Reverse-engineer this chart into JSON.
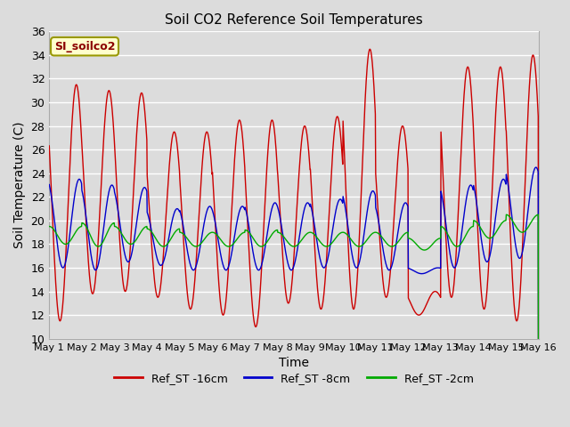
{
  "title": "Soil CO2 Reference Soil Temperatures",
  "xlabel": "Time",
  "ylabel": "Soil Temperature (C)",
  "ylim": [
    10,
    36
  ],
  "yticks": [
    10,
    12,
    14,
    16,
    18,
    20,
    22,
    24,
    26,
    28,
    30,
    32,
    34,
    36
  ],
  "legend_label": "SI_soilco2",
  "series_labels": [
    "Ref_ST -16cm",
    "Ref_ST -8cm",
    "Ref_ST -2cm"
  ],
  "series_colors": [
    "#cc0000",
    "#0000cc",
    "#00aa00"
  ],
  "bg_color": "#dcdcdc",
  "n_days": 15,
  "samples_per_day": 96,
  "day_labels": [
    "May 1",
    "May 2",
    "May 3",
    "May 4",
    "May 5",
    "May 6",
    "May 7",
    "May 8",
    "May 9",
    "May 10",
    "May 11",
    "May 12",
    "May 13",
    "May 14",
    "May 15",
    "May 16"
  ],
  "red_peaks": [
    31.5,
    31.0,
    30.8,
    27.5,
    27.5,
    28.5,
    28.5,
    28.0,
    28.8,
    34.5,
    28.0,
    14.0,
    33.0,
    33.0,
    34.0
  ],
  "red_troughs": [
    11.5,
    13.8,
    14.0,
    13.5,
    12.5,
    12.0,
    11.0,
    13.0,
    12.5,
    12.5,
    13.5,
    12.0,
    13.5,
    12.5,
    11.5
  ],
  "blue_peaks": [
    23.5,
    23.0,
    22.8,
    21.0,
    21.2,
    21.2,
    21.5,
    21.5,
    21.8,
    22.5,
    21.5,
    16.0,
    23.0,
    23.5,
    24.5
  ],
  "blue_troughs": [
    16.0,
    15.8,
    16.5,
    16.2,
    15.8,
    15.8,
    15.8,
    15.8,
    16.0,
    16.0,
    15.8,
    15.5,
    16.0,
    16.5,
    16.8
  ],
  "green_peaks": [
    19.5,
    19.8,
    19.5,
    19.3,
    19.0,
    19.0,
    19.2,
    19.0,
    19.0,
    19.0,
    19.0,
    18.5,
    19.5,
    20.0,
    20.5
  ],
  "green_troughs": [
    18.0,
    17.8,
    18.0,
    17.8,
    17.8,
    17.8,
    17.8,
    17.8,
    17.8,
    17.8,
    17.8,
    17.5,
    17.8,
    18.5,
    19.0
  ],
  "red_peak_phase": 0.58,
  "blue_peak_phase": 0.67,
  "green_peak_phase": 0.75
}
